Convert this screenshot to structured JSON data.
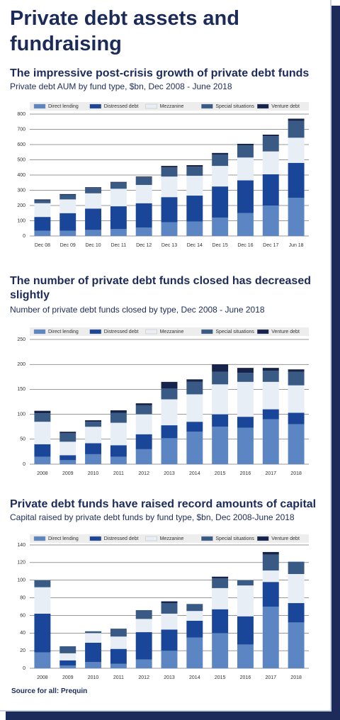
{
  "title": "Private debt assets and fundraising",
  "source": "Source for all: Prequin",
  "chart_data": [
    {
      "type": "bar",
      "stacked": true,
      "grid": true,
      "title": "The impressive post-crisis growth of private debt funds",
      "subtitle": "Private debt AUM by fund type, $bn, Dec 2008 - June 2018",
      "categories": [
        "Dec 08",
        "Dec 09",
        "Dec 10",
        "Dec 11",
        "Dec 12",
        "Dec 13",
        "Dec 14",
        "Dec 15",
        "Dec 16",
        "Dec 17",
        "Jun 18"
      ],
      "ylim": [
        0,
        800
      ],
      "yticks": [
        0,
        100,
        200,
        300,
        400,
        500,
        600,
        700,
        800
      ],
      "series": [
        {
          "name": "Direct lending",
          "color": "#5b86c3",
          "values": [
            35,
            35,
            40,
            45,
            55,
            90,
            95,
            120,
            150,
            200,
            250
          ]
        },
        {
          "name": "Distressed debt",
          "color": "#1a4699",
          "values": [
            90,
            115,
            140,
            150,
            160,
            165,
            170,
            205,
            215,
            205,
            230
          ]
        },
        {
          "name": "Mezzanine",
          "color": "#e8eef5",
          "values": [
            90,
            90,
            100,
            115,
            120,
            135,
            130,
            135,
            150,
            150,
            165
          ]
        },
        {
          "name": "Special situations",
          "color": "#3a5a86",
          "values": [
            20,
            30,
            35,
            40,
            50,
            60,
            60,
            75,
            80,
            100,
            110
          ]
        },
        {
          "name": "Venture debt",
          "color": "#16234a",
          "values": [
            5,
            5,
            5,
            5,
            5,
            10,
            10,
            10,
            10,
            10,
            15
          ]
        }
      ]
    },
    {
      "type": "bar",
      "stacked": true,
      "grid": true,
      "title": "The number of private debt funds closed has decreased slightly",
      "subtitle": "Number of private debt funds closed by type, Dec 2008 - June 2018",
      "categories": [
        "2008",
        "2009",
        "2010",
        "2011",
        "2012",
        "2013",
        "2014",
        "2015",
        "2016",
        "2017",
        "2018"
      ],
      "ylim": [
        0,
        250
      ],
      "yticks": [
        0,
        50,
        100,
        150,
        200,
        250
      ],
      "series": [
        {
          "name": "Direct lending",
          "color": "#5b86c3",
          "values": [
            15,
            8,
            20,
            15,
            30,
            52,
            65,
            75,
            73,
            90,
            80
          ]
        },
        {
          "name": "Distressed debt",
          "color": "#1a4699",
          "values": [
            25,
            10,
            22,
            23,
            30,
            26,
            20,
            25,
            22,
            20,
            23
          ]
        },
        {
          "name": "Mezzanine",
          "color": "#e8eef5",
          "values": [
            45,
            27,
            33,
            45,
            40,
            52,
            55,
            60,
            70,
            55,
            55
          ]
        },
        {
          "name": "Special situations",
          "color": "#3a5a86",
          "values": [
            17,
            17,
            10,
            20,
            18,
            22,
            25,
            25,
            18,
            22,
            27
          ]
        },
        {
          "name": "Venture debt",
          "color": "#16234a",
          "values": [
            5,
            3,
            3,
            5,
            4,
            13,
            5,
            15,
            10,
            6,
            5
          ]
        }
      ]
    },
    {
      "type": "bar",
      "stacked": true,
      "grid": true,
      "title": "Private debt funds have raised record amounts of capital",
      "subtitle": "Capital raised by private debt funds by fund type, $bn, Dec 2008-June 2018",
      "categories": [
        "2008",
        "2009",
        "2010",
        "2011",
        "2012",
        "2013",
        "2014",
        "2015",
        "2016",
        "2017",
        "2018"
      ],
      "ylim": [
        0,
        140
      ],
      "yticks": [
        0,
        20,
        40,
        60,
        80,
        100,
        120,
        140
      ],
      "series": [
        {
          "name": "Direct lending",
          "color": "#5b86c3",
          "values": [
            18,
            3,
            7,
            5,
            10,
            20,
            35,
            40,
            27,
            70,
            52
          ]
        },
        {
          "name": "Distressed debt",
          "color": "#1a4699",
          "values": [
            44,
            6,
            22,
            17,
            31,
            24,
            19,
            27,
            32,
            28,
            22
          ]
        },
        {
          "name": "Mezzanine",
          "color": "#e8eef5",
          "values": [
            30,
            8,
            11,
            14,
            15,
            18,
            11,
            24,
            35,
            13,
            33
          ]
        },
        {
          "name": "Special situations",
          "color": "#3a5a86",
          "values": [
            8,
            8,
            2,
            9,
            10,
            12,
            8,
            11,
            6,
            18,
            14
          ]
        },
        {
          "name": "Venture debt",
          "color": "#16234a",
          "values": [
            0,
            0,
            0,
            0,
            0,
            2,
            0,
            2,
            0,
            3,
            0
          ]
        }
      ]
    }
  ]
}
